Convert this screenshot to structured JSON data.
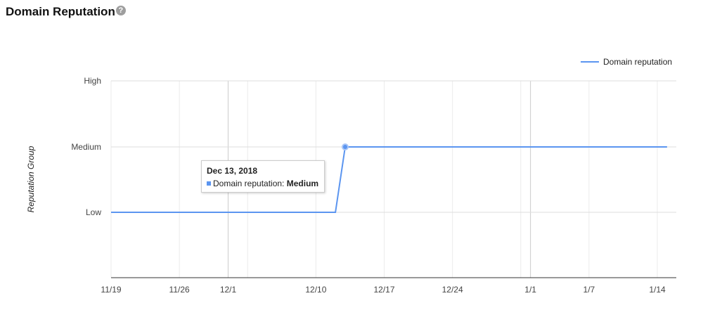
{
  "header": {
    "title": "Domain Reputation",
    "help_icon": "question-circle-icon"
  },
  "chart_data": {
    "type": "line",
    "title": "",
    "xlabel": "",
    "ylabel": "Reputation Group",
    "y_categories": [
      "Low",
      "Medium",
      "High"
    ],
    "x_ticks": [
      "11/19",
      "11/26",
      "12/1",
      "12/10",
      "12/17",
      "12/24",
      "1/1",
      "1/7",
      "1/14"
    ],
    "x_range": [
      "2018-11-19",
      "2019-01-15"
    ],
    "grid": true,
    "legend_position": "top-right",
    "series": [
      {
        "name": "Domain reputation",
        "color": "#5b95f0",
        "points": [
          [
            "2018-11-19",
            "Low"
          ],
          [
            "2018-12-12",
            "Low"
          ],
          [
            "2018-12-13",
            "Medium"
          ],
          [
            "2019-01-15",
            "Medium"
          ]
        ]
      }
    ]
  },
  "tooltip": {
    "date": "Dec 13, 2018",
    "series": "Domain reputation:",
    "value": "Medium"
  }
}
